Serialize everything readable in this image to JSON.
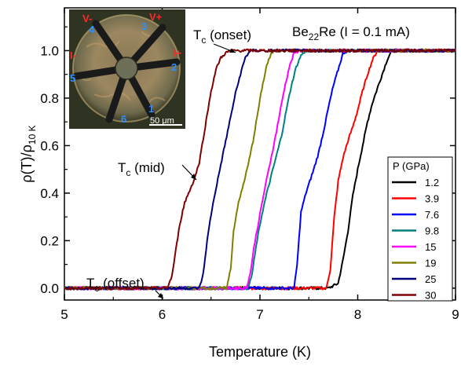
{
  "chart_data": {
    "type": "line",
    "title": "",
    "xlabel": "Temperature (K)",
    "ylabel": "ρ(T)/ρ10 K",
    "ylabel_parts": {
      "main": "ρ(T)/ρ",
      "sub": "10 K"
    },
    "xlim": [
      5,
      9
    ],
    "ylim": [
      -0.05,
      1.18
    ],
    "xticks": [
      "5",
      "6",
      "7",
      "8",
      "9"
    ],
    "yticks": [
      "0.0",
      "0.2",
      "0.4",
      "0.6",
      "0.8",
      "1.0"
    ],
    "legend": {
      "title": "P (GPa)",
      "placement": "lower-right"
    },
    "sample_label": {
      "pre": "Be",
      "sub": "22",
      "post": "Re (I = 0.1 mA)"
    },
    "annotations": [
      {
        "main": "T",
        "sub": "c",
        "rest": " (onset)"
      },
      {
        "main": "T",
        "sub": "c",
        "rest": " (mid)"
      },
      {
        "main": "T",
        "sub": "c",
        "rest": " (offset)"
      }
    ],
    "series": [
      {
        "name": "1.2",
        "color": "#000000",
        "points": [
          [
            5,
            0
          ],
          [
            7.7,
            0
          ],
          [
            7.75,
            0.01
          ],
          [
            7.8,
            0.02
          ],
          [
            7.85,
            0.12
          ],
          [
            7.9,
            0.24
          ],
          [
            7.95,
            0.39
          ],
          [
            8.0,
            0.5
          ],
          [
            8.05,
            0.6
          ],
          [
            8.1,
            0.7
          ],
          [
            8.15,
            0.78
          ],
          [
            8.2,
            0.84
          ],
          [
            8.25,
            0.9
          ],
          [
            8.3,
            0.96
          ],
          [
            8.35,
            1.0
          ],
          [
            9,
            1.0
          ]
        ]
      },
      {
        "name": "3.9",
        "color": "#ff0000",
        "points": [
          [
            5,
            0
          ],
          [
            7.68,
            0
          ],
          [
            7.72,
            0.08
          ],
          [
            7.76,
            0.3
          ],
          [
            7.8,
            0.45
          ],
          [
            7.85,
            0.55
          ],
          [
            7.9,
            0.62
          ],
          [
            7.95,
            0.68
          ],
          [
            8.0,
            0.75
          ],
          [
            8.05,
            0.83
          ],
          [
            8.1,
            0.9
          ],
          [
            8.15,
            0.96
          ],
          [
            8.2,
            1.0
          ],
          [
            9,
            1.0
          ]
        ]
      },
      {
        "name": "7.6",
        "color": "#0000ff",
        "points": [
          [
            5,
            0
          ],
          [
            7.35,
            0
          ],
          [
            7.38,
            0.1
          ],
          [
            7.42,
            0.32
          ],
          [
            7.47,
            0.4
          ],
          [
            7.55,
            0.5
          ],
          [
            7.6,
            0.57
          ],
          [
            7.65,
            0.66
          ],
          [
            7.7,
            0.76
          ],
          [
            7.75,
            0.85
          ],
          [
            7.8,
            0.92
          ],
          [
            7.85,
            0.99
          ],
          [
            7.9,
            1.0
          ],
          [
            9,
            1.0
          ]
        ]
      },
      {
        "name": "9.8",
        "color": "#008080",
        "points": [
          [
            5,
            0
          ],
          [
            6.88,
            0
          ],
          [
            6.92,
            0.06
          ],
          [
            6.97,
            0.2
          ],
          [
            7.02,
            0.31
          ],
          [
            7.07,
            0.4
          ],
          [
            7.12,
            0.48
          ],
          [
            7.17,
            0.56
          ],
          [
            7.22,
            0.64
          ],
          [
            7.27,
            0.75
          ],
          [
            7.32,
            0.85
          ],
          [
            7.37,
            0.93
          ],
          [
            7.42,
            0.98
          ],
          [
            7.47,
            1.0
          ],
          [
            9,
            1.0
          ]
        ]
      },
      {
        "name": "15",
        "color": "#ff00ff",
        "points": [
          [
            5,
            0
          ],
          [
            6.86,
            0
          ],
          [
            6.9,
            0.06
          ],
          [
            6.95,
            0.2
          ],
          [
            7.0,
            0.31
          ],
          [
            7.05,
            0.42
          ],
          [
            7.1,
            0.52
          ],
          [
            7.15,
            0.62
          ],
          [
            7.2,
            0.73
          ],
          [
            7.25,
            0.84
          ],
          [
            7.3,
            0.93
          ],
          [
            7.35,
            0.99
          ],
          [
            7.4,
            1.0
          ],
          [
            9,
            1.0
          ]
        ]
      },
      {
        "name": "19",
        "color": "#808000",
        "points": [
          [
            5,
            0
          ],
          [
            6.66,
            0
          ],
          [
            6.7,
            0.08
          ],
          [
            6.73,
            0.24
          ],
          [
            6.77,
            0.34
          ],
          [
            6.82,
            0.42
          ],
          [
            6.88,
            0.52
          ],
          [
            6.93,
            0.62
          ],
          [
            6.97,
            0.72
          ],
          [
            7.02,
            0.84
          ],
          [
            7.07,
            0.94
          ],
          [
            7.12,
            0.99
          ],
          [
            7.15,
            1.0
          ],
          [
            9,
            1.0
          ]
        ]
      },
      {
        "name": "25",
        "color": "#000080",
        "points": [
          [
            5,
            0
          ],
          [
            6.38,
            0
          ],
          [
            6.42,
            0.06
          ],
          [
            6.46,
            0.2
          ],
          [
            6.5,
            0.31
          ],
          [
            6.55,
            0.42
          ],
          [
            6.6,
            0.52
          ],
          [
            6.65,
            0.62
          ],
          [
            6.7,
            0.72
          ],
          [
            6.75,
            0.82
          ],
          [
            6.8,
            0.9
          ],
          [
            6.85,
            0.97
          ],
          [
            6.9,
            1.0
          ],
          [
            9,
            1.0
          ]
        ]
      },
      {
        "name": "30",
        "color": "#800000",
        "points": [
          [
            5,
            0
          ],
          [
            6.05,
            0
          ],
          [
            6.1,
            0.05
          ],
          [
            6.14,
            0.16
          ],
          [
            6.18,
            0.27
          ],
          [
            6.23,
            0.36
          ],
          [
            6.28,
            0.41
          ],
          [
            6.33,
            0.46
          ],
          [
            6.38,
            0.53
          ],
          [
            6.42,
            0.63
          ],
          [
            6.46,
            0.73
          ],
          [
            6.5,
            0.83
          ],
          [
            6.55,
            0.92
          ],
          [
            6.6,
            0.97
          ],
          [
            6.65,
            0.99
          ],
          [
            6.7,
            1.0
          ],
          [
            9,
            1.0
          ]
        ]
      }
    ]
  },
  "inset": {
    "labels": [
      {
        "text": "V-",
        "color": "#ff2a2a"
      },
      {
        "text": "V+",
        "color": "#ff2a2a"
      },
      {
        "text": "I-",
        "color": "#ff2a2a"
      },
      {
        "text": "I+",
        "color": "#ff2a2a"
      },
      {
        "text": "1",
        "color": "#2e8fff"
      },
      {
        "text": "2",
        "color": "#2e8fff"
      },
      {
        "text": "3",
        "color": "#2e8fff"
      },
      {
        "text": "4",
        "color": "#2e8fff"
      },
      {
        "text": "5",
        "color": "#2e8fff"
      },
      {
        "text": "6",
        "color": "#2e8fff"
      }
    ],
    "scale_bar": "50 μm"
  }
}
